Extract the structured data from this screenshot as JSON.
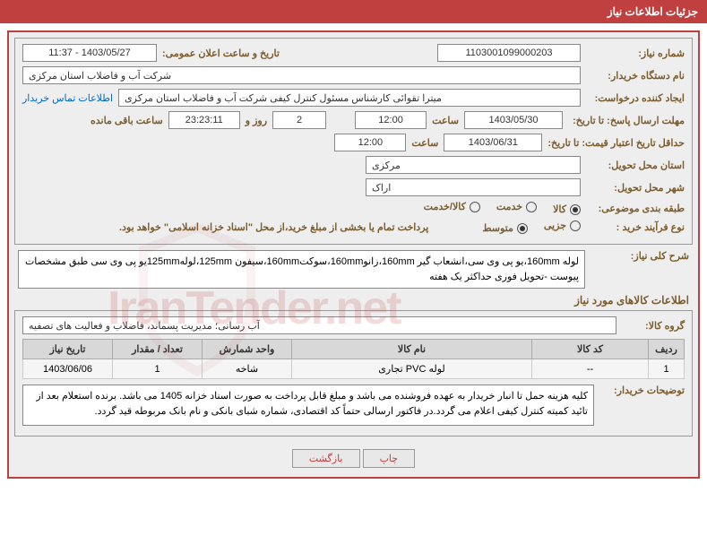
{
  "header": {
    "title": "جزئیات اطلاعات نیاز"
  },
  "fields": {
    "need_number": {
      "label": "شماره نیاز:",
      "value": "1103001099000203"
    },
    "publish_datetime": {
      "label": "تاریخ و ساعت اعلان عمومی:",
      "value": "1403/05/27 - 11:37"
    },
    "buyer_org": {
      "label": "نام دستگاه خریدار:",
      "value": "شرکت آب و فاضلاب استان مرکزی"
    },
    "requester": {
      "label": "ایجاد کننده درخواست:",
      "value": "میترا تقوائی کارشناس مسئول کنترل کیفی شرکت آب و فاضلاب استان مرکزی"
    },
    "buyer_contact_link": "اطلاعات تماس خریدار",
    "response_deadline": {
      "label": "مهلت ارسال پاسخ: تا تاریخ:",
      "date": "1403/05/30",
      "time_label": "ساعت",
      "time": "12:00"
    },
    "remaining": {
      "days": "2",
      "day_label": "روز و",
      "hours": "23:23:11",
      "suffix": "ساعت باقی مانده"
    },
    "price_validity": {
      "label": "حداقل تاریخ اعتبار قیمت: تا تاریخ:",
      "date": "1403/06/31",
      "time_label": "ساعت",
      "time": "12:00"
    },
    "delivery_province": {
      "label": "استان محل تحویل:",
      "value": "مرکزی"
    },
    "delivery_city": {
      "label": "شهر محل تحویل:",
      "value": "اراک"
    },
    "subject_class": {
      "label": "طبقه بندی موضوعی:",
      "options": [
        {
          "label": "کالا",
          "checked": true
        },
        {
          "label": "خدمت",
          "checked": false
        },
        {
          "label": "کالا/خدمت",
          "checked": false
        }
      ]
    },
    "purchase_process": {
      "label": "نوع فرآیند خرید :",
      "options": [
        {
          "label": "جزیی",
          "checked": false
        },
        {
          "label": "متوسط",
          "checked": true
        }
      ],
      "note": "پرداخت تمام یا بخشی از مبلغ خرید،از محل \"اسناد خزانه اسلامی\" خواهد بود."
    },
    "need_summary": {
      "label": "شرح کلی نیاز:",
      "value": "لوله 160mm،یو پی وی سی،انشعاب گیر 160mm،زانو160mm،سوکت160mm،سیفون 125mm،لوله125mmیو پی وی سی طبق مشخصات پیوست -تحویل فوری حداکثر یک هفته"
    },
    "goods_section_title": "اطلاعات کالاهای مورد نیاز",
    "goods_group": {
      "label": "گروه کالا:",
      "value": "آب رسانی؛ مدیریت پسماند، فاضلاب و فعالیت های تصفیه"
    },
    "table": {
      "columns": [
        "ردیف",
        "کد کالا",
        "نام کالا",
        "واحد شمارش",
        "تعداد / مقدار",
        "تاریخ نیاز"
      ],
      "rows": [
        [
          "1",
          "--",
          "لوله PVC تجاری",
          "شاخه",
          "1",
          "1403/06/06"
        ]
      ],
      "col_widths": [
        "40px",
        "130px",
        "auto",
        "100px",
        "100px",
        "100px"
      ]
    },
    "buyer_notes": {
      "label": "توضیحات خریدار:",
      "value": "کلیه هزینه حمل تا انبار خریدار به عهده فروشنده می باشد و مبلغ قابل پرداخت به صورت اسناد خزانه 1405 می باشد. برنده استعلام بعد از تائید کمیته کنترل کیفی اعلام می گردد.در فاکتور ارسالی حتماً کد اقتصادی، شماره شبای بانکی و نام بانک مربوطه قید گردد."
    }
  },
  "buttons": {
    "print": "چاپ",
    "back": "بازگشت"
  },
  "watermark_text": "IranTender.net",
  "colors": {
    "accent": "#c04040",
    "label": "#7a5c2e",
    "bg": "#eeeeee",
    "border": "#888888"
  }
}
